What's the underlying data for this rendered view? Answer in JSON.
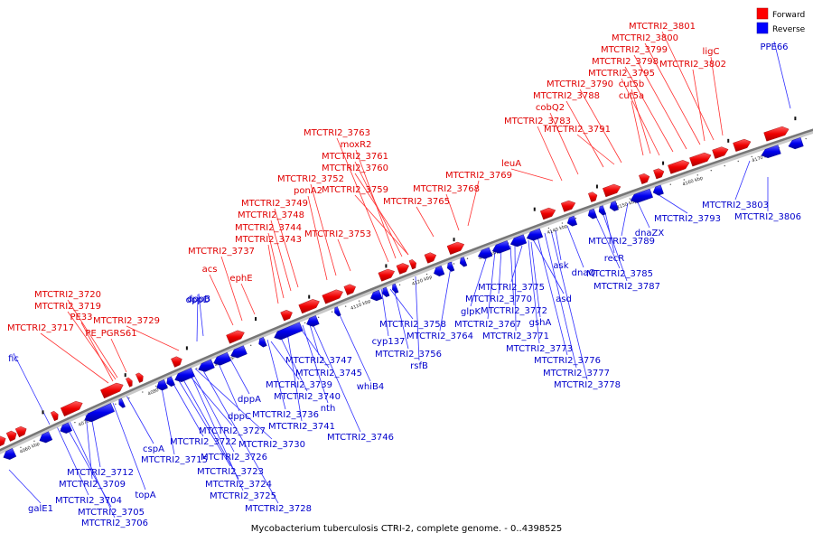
{
  "legend": {
    "forward_label": "Forward",
    "reverse_label": "Reverse",
    "forward_color": "#ff0000",
    "reverse_color": "#0000ff"
  },
  "caption": "Mycobacterium tuberculosis CTRI-2, complete genome. - 0..4398525",
  "ticks": [
    "4060 kbp",
    "4070 kbp",
    "4080 kbp",
    "4090 kbp",
    "4100 kbp",
    "4110 kbp",
    "4120 kbp",
    "4130 kbp",
    "4140 kbp",
    "4150 kbp",
    "4160 kbp",
    "4170 kbp"
  ],
  "forward_genes": [
    "MTCTRI2_3801",
    "MTCTRI2_3800",
    "MTCTRI2_3799",
    "MTCTRI2_3798",
    "MTCTRI2_3795",
    "ligC",
    "MTCTRI2_3802",
    "MTCTRI2_3790",
    "cut5b",
    "MTCTRI2_3788",
    "cut5a",
    "cobQ2",
    "MTCTRI2_3783",
    "MTCTRI2_3791",
    "MTCTRI2_3763",
    "moxR2",
    "MTCTRI2_3761",
    "MTCTRI2_3760",
    "leuA",
    "MTCTRI2_3752",
    "MTCTRI2_3769",
    "ponA2",
    "MTCTRI2_3759",
    "MTCTRI2_3768",
    "MTCTRI2_3749",
    "MTCTRI2_3765",
    "MTCTRI2_3748",
    "MTCTRI2_3744",
    "MTCTRI2_3743",
    "MTCTRI2_3753",
    "MTCTRI2_3737",
    "acs",
    "ephE",
    "MTCTRI2_3720",
    "MTCTRI2_3719",
    "PE33",
    "MTCTRI2_3729",
    "MTCTRI2_3717",
    "PE_PGRS61"
  ],
  "reverse_genes": [
    "PPE66",
    "MTCTRI2_3803",
    "MTCTRI2_3806",
    "MTCTRI2_3793",
    "dnaZX",
    "MTCTRI2_3789",
    "recR",
    "ask",
    "dnaQ",
    "MTCTRI2_3785",
    "MTCTRI2_3787",
    "asd",
    "MTCTRI2_3775",
    "MTCTRI2_3770",
    "MTCTRI2_3772",
    "glpK",
    "gshA",
    "MTCTRI2_3767",
    "MTCTRI2_3771",
    "MTCTRI2_3773",
    "MTCTRI2_3776",
    "MTCTRI2_3777",
    "MTCTRI2_3778",
    "MTCTRI2_3758",
    "MTCTRI2_3764",
    "cyp137",
    "MTCTRI2_3756",
    "rsfB",
    "whiB4",
    "dppD",
    "dppB",
    "MTCTRI2_3747",
    "MTCTRI2_3745",
    "MTCTRI2_3739",
    "MTCTRI2_3740",
    "dppA",
    "nth",
    "MTCTRI2_3736",
    "dppC",
    "MTCTRI2_3741",
    "MTCTRI2_3746",
    "MTCTRI2_3727",
    "MTCTRI2_3722",
    "MTCTRI2_3730",
    "fic",
    "cspA",
    "MTCTRI2_3715",
    "MTCTRI2_3726",
    "MTCTRI2_3712",
    "MTCTRI2_3723",
    "MTCTRI2_3709",
    "MTCTRI2_3724",
    "topA",
    "MTCTRI2_3725",
    "MTCTRI2_3704",
    "MTCTRI2_3728",
    "MTCTRI2_3705",
    "galE1",
    "MTCTRI2_3706"
  ]
}
